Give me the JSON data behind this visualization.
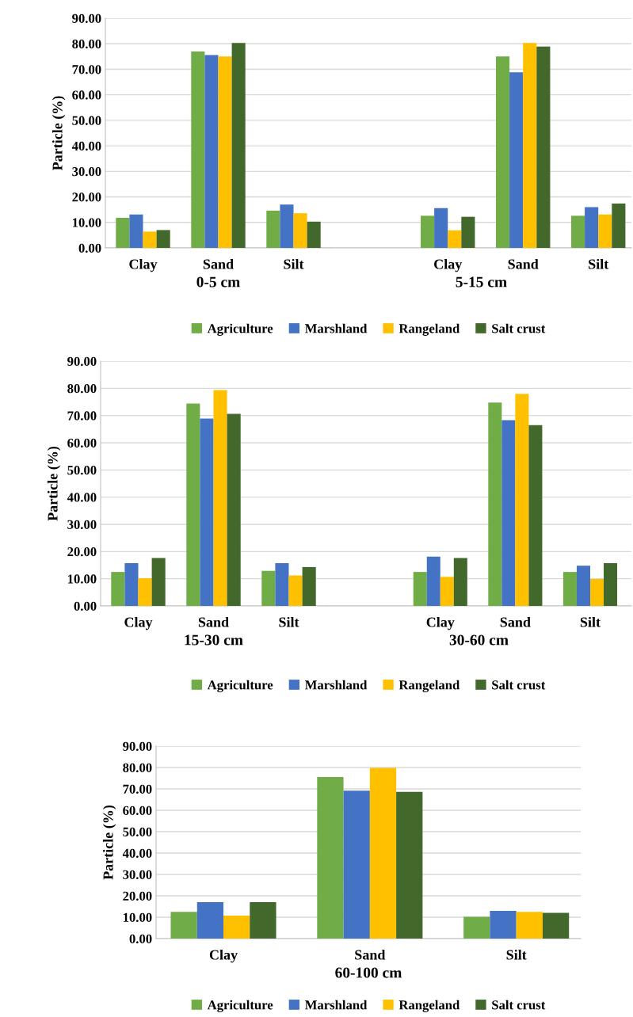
{
  "chart_data": [
    {
      "type": "bar",
      "xlabel": "0-5 cm",
      "ylabel": "Particle (%)",
      "categories": [
        "Clay",
        "Sand",
        "Silt"
      ],
      "ylim": [
        0,
        90
      ],
      "yticks": [
        {
          "value": 0,
          "label": "0.00"
        },
        {
          "value": 10,
          "label": "10.00"
        },
        {
          "value": 20,
          "label": "20.00"
        },
        {
          "value": 30,
          "label": "30.00"
        },
        {
          "value": 40,
          "label": "40.00"
        },
        {
          "value": 50,
          "label": "50.00"
        },
        {
          "value": 60,
          "label": "60.00"
        },
        {
          "value": 70,
          "label": "70.00"
        },
        {
          "value": 80,
          "label": "80.00"
        },
        {
          "value": 90,
          "label": "90.00"
        }
      ],
      "grid": "y",
      "legend": "bottom",
      "series": [
        {
          "name": "Agriculture",
          "color": "#70ad47",
          "values": [
            11.8,
            77,
            14.6
          ]
        },
        {
          "name": "Marshland",
          "color": "#4472c4",
          "values": [
            13.1,
            75.6,
            17
          ]
        },
        {
          "name": "Rangeland",
          "color": "#ffc000",
          "values": [
            6.4,
            75,
            13.6
          ]
        },
        {
          "name": "Salt crust",
          "color": "#43682b",
          "values": [
            7,
            80.3,
            10.3
          ]
        }
      ]
    },
    {
      "type": "bar",
      "xlabel": "5-15 cm",
      "categories": [
        "Clay",
        "Sand",
        "Silt"
      ],
      "ylim": [
        0,
        90
      ],
      "yticks": [
        0,
        10,
        20,
        30,
        40,
        50,
        60,
        70,
        80,
        90
      ],
      "grid": "y",
      "tick_labels": "x",
      "series": [
        {
          "color": "#70ad47",
          "values": [
            12.6,
            75,
            12.6
          ]
        },
        {
          "color": "#4472c4",
          "values": [
            15.6,
            68.8,
            16
          ]
        },
        {
          "color": "#ffc000",
          "values": [
            6.9,
            80.3,
            13.1
          ]
        },
        {
          "color": "#43682b",
          "values": [
            12.2,
            78.9,
            17.4
          ]
        }
      ]
    },
    {
      "type": "bar",
      "xlabel": "15-30 cm",
      "ylabel": "Particle (%)",
      "categories": [
        "Clay",
        "Sand",
        "Silt"
      ],
      "ylim": [
        0,
        90
      ],
      "yticks": [
        {
          "value": 0,
          "label": "0.00"
        },
        {
          "value": 10,
          "label": "10.00"
        },
        {
          "value": 20,
          "label": "20.00"
        },
        {
          "value": 30,
          "label": "30.00"
        },
        {
          "value": 40,
          "label": "40.00"
        },
        {
          "value": 50,
          "label": "50.00"
        },
        {
          "value": 60,
          "label": "60.00"
        },
        {
          "value": 70,
          "label": "70.00"
        },
        {
          "value": 80,
          "label": "80.00"
        },
        {
          "value": 90,
          "label": "90.00"
        }
      ],
      "grid": "y",
      "legend": "bottom",
      "series": [
        {
          "name": "Agriculture",
          "color": "#70ad47",
          "values": [
            12.5,
            74.4,
            12.9
          ]
        },
        {
          "name": "Marshland",
          "color": "#4472c4",
          "values": [
            15.7,
            68.9,
            15.7
          ]
        },
        {
          "name": "Rangeland",
          "color": "#ffc000",
          "values": [
            10.2,
            79.4,
            11.2
          ]
        },
        {
          "name": "Salt crust",
          "color": "#43682b",
          "values": [
            17.6,
            70.6,
            14.3
          ]
        }
      ]
    },
    {
      "type": "bar",
      "xlabel": "30-60 cm",
      "categories": [
        "Clay",
        "Sand",
        "Silt"
      ],
      "ylim": [
        0,
        90
      ],
      "yticks": [
        0,
        10,
        20,
        30,
        40,
        50,
        60,
        70,
        80,
        90
      ],
      "grid": "y",
      "tick_labels": "x",
      "series": [
        {
          "color": "#70ad47",
          "values": [
            12.5,
            74.8,
            12.5
          ]
        },
        {
          "color": "#4472c4",
          "values": [
            18.1,
            68.3,
            14.8
          ]
        },
        {
          "color": "#ffc000",
          "values": [
            10.7,
            78,
            9.9
          ]
        },
        {
          "color": "#43682b",
          "values": [
            17.6,
            66.5,
            15.7
          ]
        }
      ]
    },
    {
      "type": "bar",
      "xlabel": "60-100 cm",
      "ylabel": "Particle (%)",
      "categories": [
        "Clay",
        "Sand",
        "Silt"
      ],
      "ylim": [
        0,
        90
      ],
      "yticks": [
        {
          "value": 0,
          "label": "0.00"
        },
        {
          "value": 10,
          "label": "10.00"
        },
        {
          "value": 20,
          "label": "20.00"
        },
        {
          "value": 30,
          "label": "30.00"
        },
        {
          "value": 40,
          "label": "40.00"
        },
        {
          "value": 50,
          "label": "50.00"
        },
        {
          "value": 60,
          "label": "60.00"
        },
        {
          "value": 70,
          "label": "70.00"
        },
        {
          "value": 80,
          "label": "80.00"
        },
        {
          "value": 90,
          "label": "90.00"
        }
      ],
      "grid": "y",
      "legend": "bottom",
      "series": [
        {
          "name": "Agriculture",
          "color": "#70ad47",
          "values": [
            12.5,
            75.6,
            10.2
          ]
        },
        {
          "name": "Marshland",
          "color": "#4472c4",
          "values": [
            17,
            69.2,
            13
          ]
        },
        {
          "name": "Rangeland",
          "color": "#ffc000",
          "values": [
            10.7,
            79.8,
            12.5
          ]
        },
        {
          "name": "Salt crust",
          "color": "#43682b",
          "values": [
            17,
            68.6,
            12
          ]
        }
      ]
    }
  ]
}
